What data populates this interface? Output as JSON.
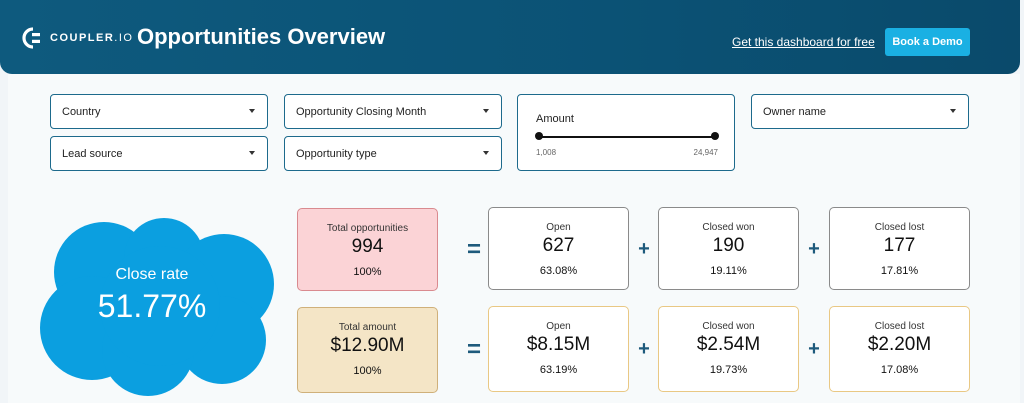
{
  "header": {
    "logo_text": "COUPLER",
    "logo_suffix": ".IO",
    "title": "Opportunities Overview",
    "link_label": "Get this dashboard for free",
    "demo_label": "Book a Demo"
  },
  "filters": {
    "country": "Country",
    "closing_month": "Opportunity Closing Month",
    "owner": "Owner name",
    "lead_source": "Lead source",
    "type": "Opportunity type",
    "amount": {
      "label": "Amount",
      "min": "1,008",
      "max": "24,947"
    }
  },
  "close_rate": {
    "label": "Close rate",
    "value": "51.77%"
  },
  "opportunities": {
    "total": {
      "label": "Total opportunities",
      "value": "994",
      "pct": "100%"
    },
    "open": {
      "label": "Open",
      "value": "627",
      "pct": "63.08%"
    },
    "won": {
      "label": "Closed won",
      "value": "190",
      "pct": "19.11%"
    },
    "lost": {
      "label": "Closed lost",
      "value": "177",
      "pct": "17.81%"
    }
  },
  "amounts": {
    "total": {
      "label": "Total amount",
      "value": "$12.90M",
      "pct": "100%"
    },
    "open": {
      "label": "Open",
      "value": "$8.15M",
      "pct": "63.19%"
    },
    "won": {
      "label": "Closed won",
      "value": "$2.54M",
      "pct": "19.73%"
    },
    "lost": {
      "label": "Closed lost",
      "value": "$2.20M",
      "pct": "17.08%"
    }
  },
  "operators": {
    "equals": "=",
    "plus": "+"
  },
  "colors": {
    "header": "#0e5a7e",
    "accent": "#1ab0e3",
    "cloud": "#0b9fe0"
  }
}
